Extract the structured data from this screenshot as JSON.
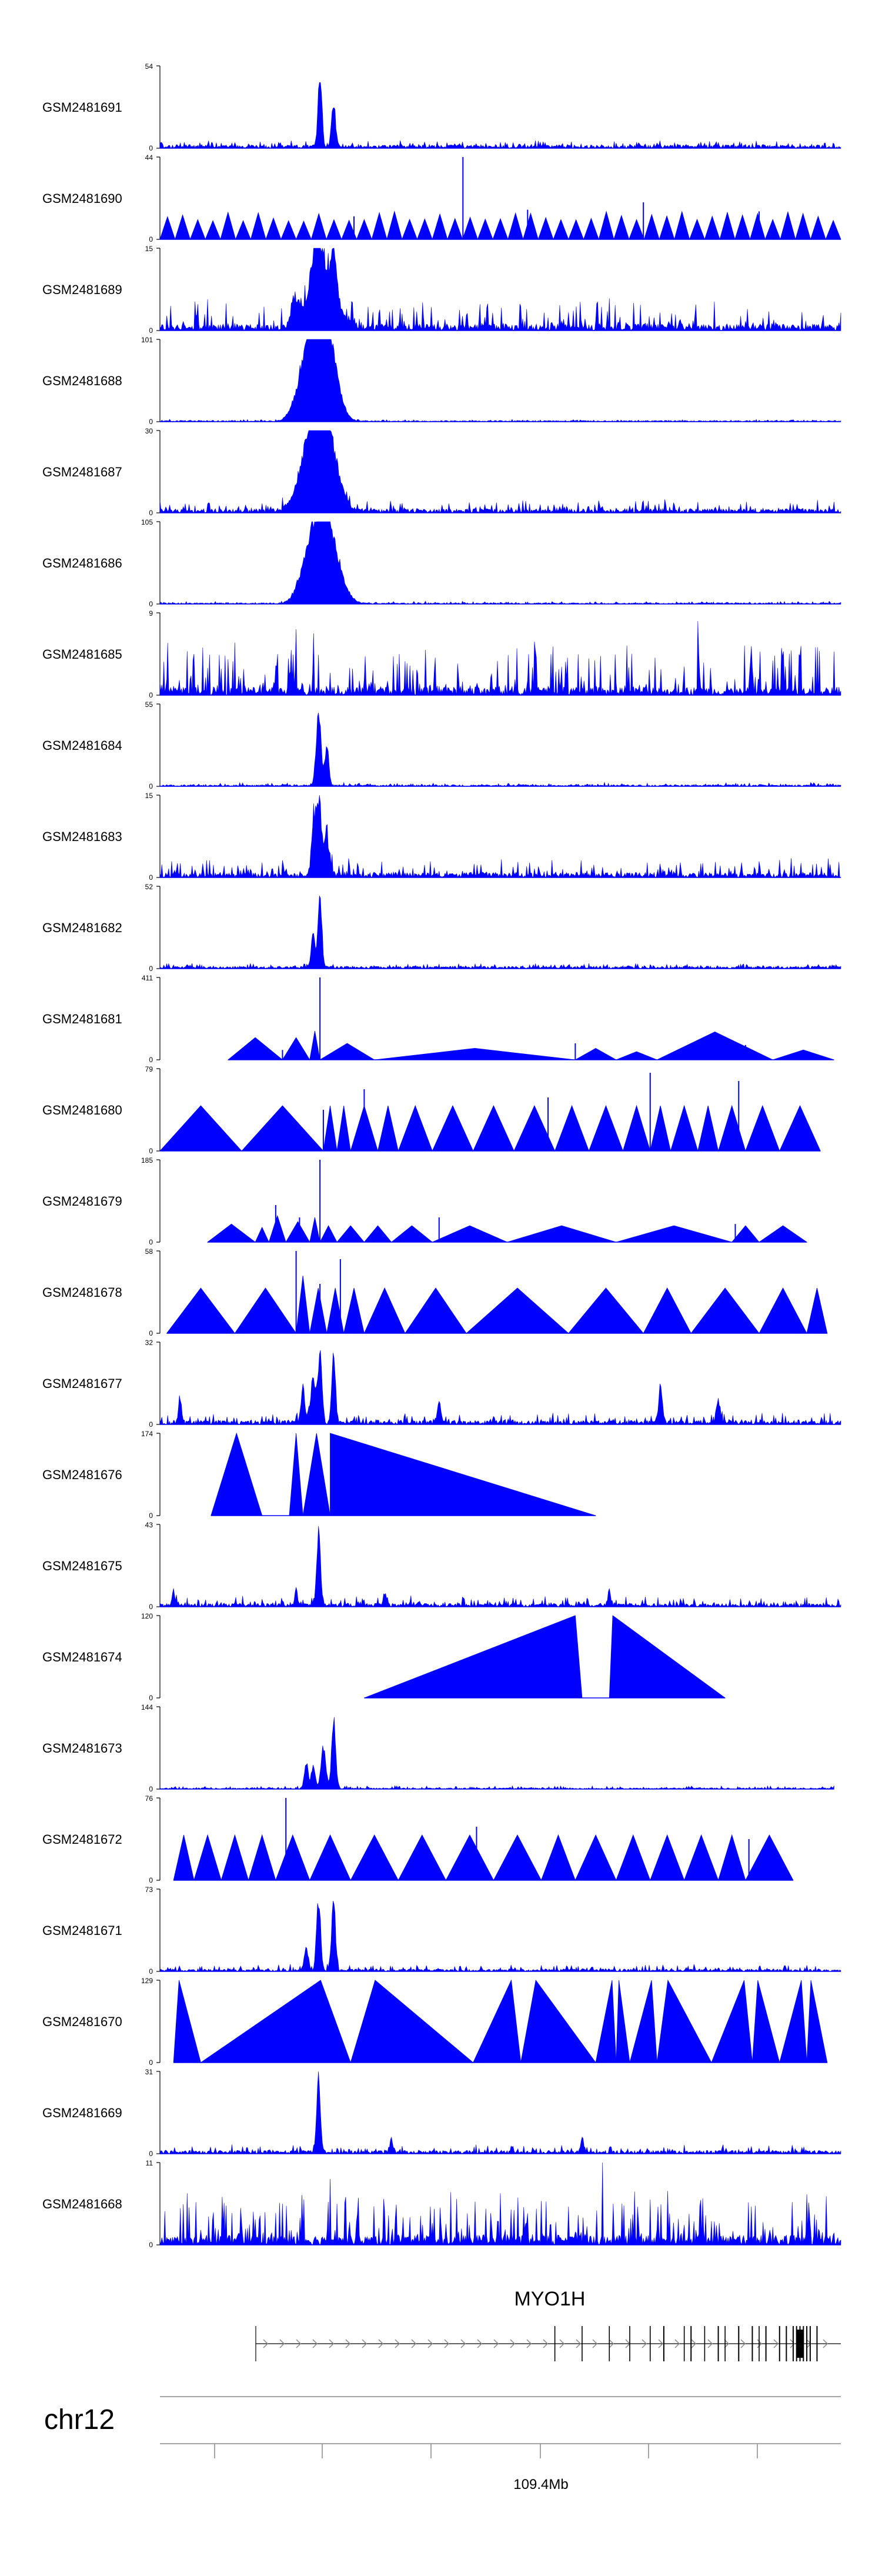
{
  "figure": {
    "track_color": "#0000ff",
    "axis_color": "#000000",
    "gene_color": "#000000"
  },
  "chart_data": {
    "type": "area",
    "tracks": [
      {
        "label": "GSM2481691",
        "ymax": 54,
        "pattern": "peaks",
        "peaks": [
          [
            0.235,
            1.0,
            0.004
          ],
          [
            0.255,
            0.62,
            0.004
          ]
        ],
        "noise": 0.06,
        "base": 0.04
      },
      {
        "label": "GSM2481690",
        "ymax": 44,
        "pattern": "triangles",
        "count": 45,
        "spikes": [
          [
            0.445,
            1.0
          ],
          [
            0.71,
            0.45
          ],
          [
            0.285,
            0.28
          ],
          [
            0.54,
            0.36
          ],
          [
            0.88,
            0.34
          ],
          [
            0.1,
            0.2
          ]
        ],
        "cover": [
          0.0,
          1.0
        ]
      },
      {
        "label": "GSM2481689",
        "ymax": 15,
        "pattern": "peaks",
        "peaks": [
          [
            0.23,
            0.95,
            0.012
          ],
          [
            0.255,
            0.7,
            0.006
          ],
          [
            0.245,
            0.5,
            0.025
          ],
          [
            0.2,
            0.35,
            0.01
          ]
        ],
        "noise": 0.32,
        "base": 0.08
      },
      {
        "label": "GSM2481688",
        "ymax": 101,
        "pattern": "peaks",
        "peaks": [
          [
            0.23,
            1.0,
            0.022
          ],
          [
            0.25,
            0.75,
            0.018
          ],
          [
            0.215,
            0.5,
            0.02
          ]
        ],
        "noise": 0.015,
        "base": 0.015
      },
      {
        "label": "GSM2481687",
        "ymax": 30,
        "pattern": "peaks",
        "peaks": [
          [
            0.23,
            1.0,
            0.02
          ],
          [
            0.25,
            0.65,
            0.02
          ],
          [
            0.22,
            0.5,
            0.025
          ]
        ],
        "noise": 0.12,
        "base": 0.05
      },
      {
        "label": "GSM2481686",
        "ymax": 105,
        "pattern": "peaks",
        "peaks": [
          [
            0.235,
            1.0,
            0.018
          ],
          [
            0.255,
            0.6,
            0.02
          ],
          [
            0.215,
            0.45,
            0.018
          ]
        ],
        "noise": 0.02,
        "base": 0.015
      },
      {
        "label": "GSM2481685",
        "ymax": 9,
        "pattern": "dense",
        "noise": 0.55,
        "base": 0.1,
        "spikes": [
          [
            0.2,
            0.8
          ],
          [
            0.225,
            0.75
          ],
          [
            0.55,
            0.65
          ],
          [
            0.79,
            0.9
          ],
          [
            0.39,
            0.55
          ],
          [
            0.05,
            0.5
          ]
        ]
      },
      {
        "label": "GSM2481684",
        "ymax": 55,
        "pattern": "peaks",
        "peaks": [
          [
            0.233,
            1.0,
            0.005
          ],
          [
            0.245,
            0.55,
            0.004
          ]
        ],
        "noise": 0.03,
        "base": 0.02
      },
      {
        "label": "GSM2481683",
        "ymax": 15,
        "pattern": "peaks",
        "peaks": [
          [
            0.233,
            1.0,
            0.006
          ],
          [
            0.225,
            0.6,
            0.004
          ],
          [
            0.245,
            0.45,
            0.006
          ]
        ],
        "noise": 0.18,
        "base": 0.06
      },
      {
        "label": "GSM2481682",
        "ymax": 52,
        "pattern": "peaks",
        "peaks": [
          [
            0.235,
            1.0,
            0.004
          ],
          [
            0.225,
            0.5,
            0.004
          ]
        ],
        "noise": 0.04,
        "base": 0.03
      },
      {
        "label": "GSM2481681",
        "ymax": 411,
        "pattern": "triangles",
        "tris": [
          [
            0.1,
            0.18,
            0.27
          ],
          [
            0.18,
            0.22,
            0.27
          ],
          [
            0.22,
            0.235,
            0.35
          ],
          [
            0.235,
            0.315,
            0.2
          ],
          [
            0.315,
            0.61,
            0.14
          ],
          [
            0.61,
            0.67,
            0.14
          ],
          [
            0.67,
            0.73,
            0.1
          ],
          [
            0.73,
            0.9,
            0.34
          ],
          [
            0.9,
            0.99,
            0.12
          ]
        ],
        "spikes": [
          [
            0.235,
            1.0
          ],
          [
            0.61,
            0.2
          ],
          [
            0.86,
            0.18
          ],
          [
            0.18,
            0.12
          ]
        ],
        "cover": [
          0.1,
          0.99
        ]
      },
      {
        "label": "GSM2481680",
        "ymax": 79,
        "pattern": "triangles",
        "tris": [
          [
            0.0,
            0.12,
            0.55
          ],
          [
            0.12,
            0.24,
            0.55
          ],
          [
            0.24,
            0.26,
            0.55
          ],
          [
            0.26,
            0.28,
            0.55
          ],
          [
            0.28,
            0.32,
            0.55
          ],
          [
            0.32,
            0.35,
            0.55
          ],
          [
            0.35,
            0.4,
            0.55
          ],
          [
            0.4,
            0.46,
            0.55
          ],
          [
            0.46,
            0.52,
            0.55
          ],
          [
            0.52,
            0.58,
            0.55
          ],
          [
            0.58,
            0.63,
            0.55
          ],
          [
            0.63,
            0.68,
            0.55
          ],
          [
            0.68,
            0.72,
            0.55
          ],
          [
            0.72,
            0.75,
            0.55
          ],
          [
            0.75,
            0.79,
            0.55
          ],
          [
            0.79,
            0.82,
            0.55
          ],
          [
            0.82,
            0.86,
            0.55
          ],
          [
            0.86,
            0.91,
            0.55
          ],
          [
            0.91,
            0.97,
            0.55
          ]
        ],
        "spikes": [
          [
            0.3,
            0.75
          ],
          [
            0.57,
            0.65
          ],
          [
            0.72,
            0.95
          ],
          [
            0.85,
            0.85
          ],
          [
            0.24,
            0.5
          ]
        ],
        "cover": [
          0.0,
          0.97
        ]
      },
      {
        "label": "GSM2481679",
        "ymax": 185,
        "pattern": "triangles",
        "tris": [
          [
            0.07,
            0.14,
            0.22
          ],
          [
            0.14,
            0.16,
            0.18
          ],
          [
            0.16,
            0.185,
            0.32
          ],
          [
            0.185,
            0.22,
            0.25
          ],
          [
            0.22,
            0.235,
            0.3
          ],
          [
            0.235,
            0.26,
            0.2
          ],
          [
            0.26,
            0.3,
            0.2
          ],
          [
            0.3,
            0.34,
            0.2
          ],
          [
            0.34,
            0.4,
            0.2
          ],
          [
            0.4,
            0.51,
            0.2
          ],
          [
            0.51,
            0.67,
            0.2
          ],
          [
            0.67,
            0.84,
            0.2
          ],
          [
            0.84,
            0.88,
            0.2
          ],
          [
            0.88,
            0.95,
            0.2
          ]
        ],
        "spikes": [
          [
            0.235,
            1.0
          ],
          [
            0.17,
            0.45
          ],
          [
            0.205,
            0.3
          ],
          [
            0.41,
            0.3
          ],
          [
            0.845,
            0.22
          ]
        ],
        "cover": [
          0.07,
          0.95
        ]
      },
      {
        "label": "GSM2481678",
        "ymax": 58,
        "pattern": "triangles",
        "tris": [
          [
            0.01,
            0.11,
            0.55
          ],
          [
            0.11,
            0.2,
            0.55
          ],
          [
            0.2,
            0.22,
            0.7
          ],
          [
            0.22,
            0.245,
            0.55
          ],
          [
            0.245,
            0.27,
            0.55
          ],
          [
            0.27,
            0.3,
            0.55
          ],
          [
            0.3,
            0.36,
            0.55
          ],
          [
            0.36,
            0.45,
            0.55
          ],
          [
            0.45,
            0.6,
            0.55
          ],
          [
            0.6,
            0.71,
            0.55
          ],
          [
            0.71,
            0.78,
            0.55
          ],
          [
            0.78,
            0.88,
            0.55
          ],
          [
            0.88,
            0.95,
            0.55
          ],
          [
            0.95,
            0.98,
            0.55
          ]
        ],
        "spikes": [
          [
            0.2,
            1.0
          ],
          [
            0.265,
            0.9
          ],
          [
            0.235,
            0.6
          ]
        ],
        "cover": [
          0.01,
          0.98
        ]
      },
      {
        "label": "GSM2481677",
        "ymax": 32,
        "pattern": "peaks",
        "peaks": [
          [
            0.235,
            1.0,
            0.004
          ],
          [
            0.255,
            0.9,
            0.004
          ],
          [
            0.225,
            0.6,
            0.005
          ],
          [
            0.21,
            0.45,
            0.004
          ],
          [
            0.735,
            0.45,
            0.004
          ],
          [
            0.03,
            0.35,
            0.003
          ],
          [
            0.82,
            0.3,
            0.004
          ],
          [
            0.41,
            0.25,
            0.004
          ]
        ],
        "noise": 0.1,
        "base": 0.05
      },
      {
        "label": "GSM2481676",
        "ymax": 174,
        "pattern": "triangles",
        "tris": [
          [
            0.075,
            0.15,
            1.0
          ],
          [
            0.15,
            0.19,
            0.0
          ],
          [
            0.19,
            0.21,
            1.0
          ],
          [
            0.21,
            0.25,
            1.0
          ],
          [
            0.25,
            0.64,
            1.0
          ]
        ],
        "tri_shape": "left",
        "cover": [
          0.075,
          0.64
        ]
      },
      {
        "label": "GSM2481675",
        "ymax": 43,
        "pattern": "peaks",
        "peaks": [
          [
            0.233,
            1.0,
            0.004
          ],
          [
            0.02,
            0.2,
            0.003
          ],
          [
            0.33,
            0.18,
            0.003
          ],
          [
            0.66,
            0.2,
            0.003
          ],
          [
            0.2,
            0.2,
            0.003
          ]
        ],
        "noise": 0.1,
        "base": 0.04
      },
      {
        "label": "GSM2481674",
        "ymax": 120,
        "pattern": "triangles",
        "tris": [
          [
            0.3,
            0.61,
            1.0
          ],
          [
            0.61,
            0.66,
            0.0
          ],
          [
            0.66,
            0.83,
            1.0
          ]
        ],
        "tri_shape": "apex",
        "cover": [
          0.3,
          0.83
        ]
      },
      {
        "label": "GSM2481673",
        "ymax": 144,
        "pattern": "peaks",
        "peaks": [
          [
            0.255,
            1.0,
            0.004
          ],
          [
            0.24,
            0.55,
            0.005
          ],
          [
            0.215,
            0.35,
            0.004
          ],
          [
            0.225,
            0.3,
            0.004
          ]
        ],
        "noise": 0.03,
        "base": 0.015,
        "cover": [
          0.0,
          0.99
        ]
      },
      {
        "label": "GSM2481672",
        "ymax": 76,
        "pattern": "triangles",
        "tris": [
          [
            0.02,
            0.05,
            0.55
          ],
          [
            0.05,
            0.09,
            0.55
          ],
          [
            0.09,
            0.13,
            0.55
          ],
          [
            0.13,
            0.17,
            0.55
          ],
          [
            0.17,
            0.22,
            0.55
          ],
          [
            0.22,
            0.28,
            0.55
          ],
          [
            0.28,
            0.35,
            0.55
          ],
          [
            0.35,
            0.42,
            0.55
          ],
          [
            0.42,
            0.49,
            0.55
          ],
          [
            0.49,
            0.56,
            0.55
          ],
          [
            0.56,
            0.61,
            0.55
          ],
          [
            0.61,
            0.67,
            0.55
          ],
          [
            0.67,
            0.72,
            0.55
          ],
          [
            0.72,
            0.77,
            0.55
          ],
          [
            0.77,
            0.82,
            0.55
          ],
          [
            0.82,
            0.86,
            0.55
          ],
          [
            0.86,
            0.93,
            0.55
          ]
        ],
        "spikes": [
          [
            0.185,
            1.0
          ],
          [
            0.465,
            0.65
          ],
          [
            0.865,
            0.5
          ]
        ],
        "cover": [
          0.02,
          0.93
        ]
      },
      {
        "label": "GSM2481671",
        "ymax": 73,
        "pattern": "peaks",
        "peaks": [
          [
            0.233,
            1.0,
            0.004
          ],
          [
            0.255,
            1.0,
            0.004
          ],
          [
            0.215,
            0.3,
            0.004
          ]
        ],
        "noise": 0.06,
        "base": 0.03
      },
      {
        "label": "GSM2481670",
        "ymax": 129,
        "pattern": "triangles",
        "tris": [
          [
            0.02,
            0.06,
            1.0
          ],
          [
            0.06,
            0.28,
            1.0
          ],
          [
            0.28,
            0.46,
            1.0
          ],
          [
            0.46,
            0.53,
            1.0
          ],
          [
            0.53,
            0.64,
            1.0
          ],
          [
            0.64,
            0.67,
            1.0
          ],
          [
            0.67,
            0.69,
            1.0
          ],
          [
            0.69,
            0.73,
            1.0
          ],
          [
            0.73,
            0.81,
            1.0
          ],
          [
            0.81,
            0.87,
            1.0
          ],
          [
            0.87,
            0.91,
            1.0
          ],
          [
            0.91,
            0.95,
            1.0
          ],
          [
            0.95,
            0.98,
            1.0
          ]
        ],
        "tri_shape": "alt",
        "cover": [
          0.02,
          0.98
        ]
      },
      {
        "label": "GSM2481669",
        "ymax": 31,
        "pattern": "peaks",
        "peaks": [
          [
            0.233,
            1.0,
            0.004
          ],
          [
            0.62,
            0.2,
            0.003
          ],
          [
            0.34,
            0.18,
            0.003
          ]
        ],
        "noise": 0.08,
        "base": 0.04
      },
      {
        "label": "GSM2481668",
        "ymax": 11,
        "pattern": "dense",
        "noise": 0.55,
        "base": 0.12,
        "spikes": [
          [
            0.65,
            1.0
          ],
          [
            0.25,
            0.8
          ],
          [
            0.5,
            0.6
          ],
          [
            0.18,
            0.5
          ],
          [
            0.72,
            0.55
          ]
        ]
      }
    ],
    "gene": {
      "name": "MYO1H",
      "strand": "+",
      "exons": [
        0.74,
        0.78,
        0.82,
        0.85,
        0.87,
        0.89,
        0.91,
        0.92,
        0.93,
        0.935,
        0.94,
        0.945,
        0.95,
        0.955,
        0.965
      ]
    },
    "genome_axis": {
      "chromosome": "chr12",
      "tick_label": "109.4Mb"
    }
  }
}
